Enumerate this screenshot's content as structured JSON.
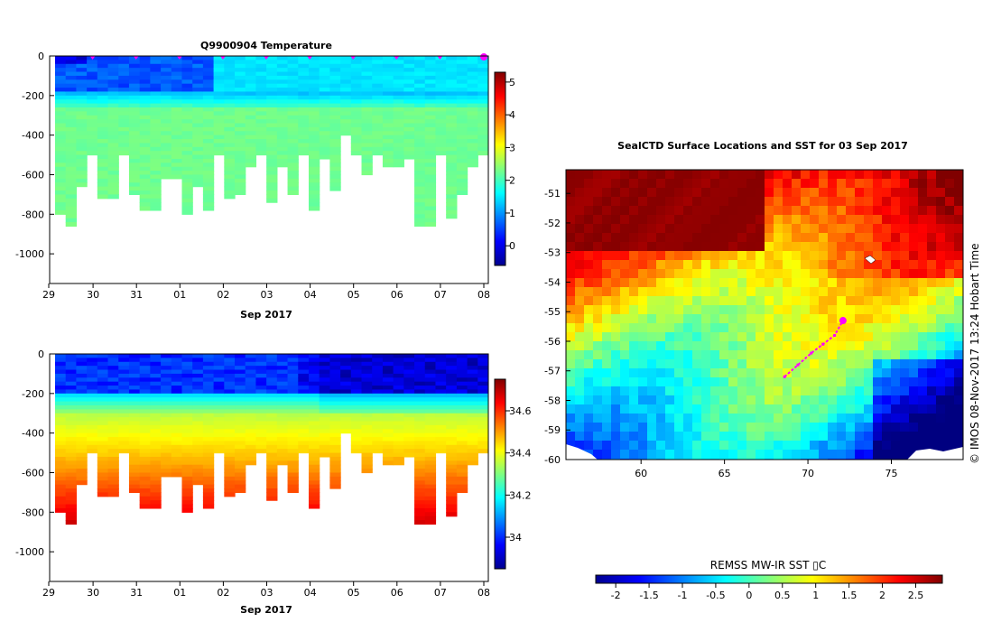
{
  "chart_data": [
    {
      "type": "heatmap",
      "title": "Q9900904  Temperature",
      "xlabel": "Sep 2017",
      "x_ticks": [
        "29",
        "30",
        "31",
        "01",
        "02",
        "03",
        "04",
        "05",
        "06",
        "07",
        "08"
      ],
      "y_ticks": [
        0,
        -200,
        -400,
        -600,
        -800,
        -1000
      ],
      "ylim": [
        -1150,
        0
      ],
      "colorbar_ticks": [
        5,
        4,
        3,
        2,
        1,
        0
      ],
      "colorbar_range": [
        -0.6,
        5.3
      ],
      "profile_bottom_depths": [
        -800,
        -860,
        -660,
        -500,
        -710,
        -710,
        -500,
        -690,
        -780,
        -780,
        -610,
        -610,
        -790,
        -660,
        -770,
        -500,
        -720,
        -690,
        -560,
        -500,
        -730,
        -560,
        -690,
        -500,
        -770,
        -520,
        -680,
        -400,
        -500,
        -600,
        -500,
        -560,
        -560,
        -510,
        -860,
        -860,
        -500,
        -820,
        -690,
        -560,
        -500
      ],
      "surface_layer": "cold water 0 to -200 m (about 0 to 1 °C), warmer water below -200 m (about 2 to 2.5 °C)"
    },
    {
      "type": "heatmap",
      "title": "",
      "xlabel": "Sep 2017",
      "x_ticks": [
        "29",
        "30",
        "31",
        "01",
        "02",
        "03",
        "04",
        "05",
        "06",
        "07",
        "08"
      ],
      "y_ticks": [
        0,
        -200,
        -400,
        -600,
        -800,
        -1000
      ],
      "ylim": [
        -1150,
        0
      ],
      "colorbar_ticks": [
        "34.6",
        "34.4",
        "34.2",
        "34"
      ],
      "colorbar_range": [
        33.85,
        34.75
      ],
      "profile_bottom_depths": [
        -800,
        -860,
        -660,
        -500,
        -710,
        -710,
        -500,
        -690,
        -780,
        -780,
        -610,
        -610,
        -790,
        -660,
        -770,
        -500,
        -720,
        -690,
        -560,
        -500,
        -730,
        -560,
        -690,
        -500,
        -770,
        -520,
        -680,
        -400,
        -500,
        -600,
        -500,
        -560,
        -560,
        -510,
        -860,
        -860,
        -500,
        -820,
        -690,
        -560,
        -500
      ]
    },
    {
      "type": "map",
      "title": "SealCTD Surface Locations and SST for 03 Sep 2017",
      "x_ticks": [
        "60",
        "65",
        "70",
        "75"
      ],
      "y_ticks": [
        "-51",
        "-52",
        "-53",
        "-54",
        "-55",
        "-56",
        "-57",
        "-58",
        "-59",
        "-60"
      ],
      "xlim": [
        55.5,
        79.3
      ],
      "ylim": [
        -60,
        -50.2
      ],
      "side_label": "© IMOS 08-Nov-2017 13:24 Hobart Time",
      "track": [
        [
          68.6,
          -57.2
        ],
        [
          69.4,
          -56.8
        ],
        [
          70.2,
          -56.4
        ],
        [
          70.9,
          -56.1
        ],
        [
          71.6,
          -55.8
        ],
        [
          72.1,
          -55.3
        ]
      ],
      "current_position": [
        72.1,
        -55.3
      ],
      "colorbar_title": "REMSS MW-IR SST ▯C",
      "colorbar_ticks": [
        "-2",
        "-1.5",
        "-1",
        "-0.5",
        "0",
        "0.5",
        "1",
        "1.5",
        "2",
        "2.5"
      ],
      "colorbar_range": [
        -2.3,
        2.9
      ]
    }
  ],
  "colors": {
    "marker": "#ff00ff",
    "frame": "#000000",
    "land": "#ffffff"
  }
}
